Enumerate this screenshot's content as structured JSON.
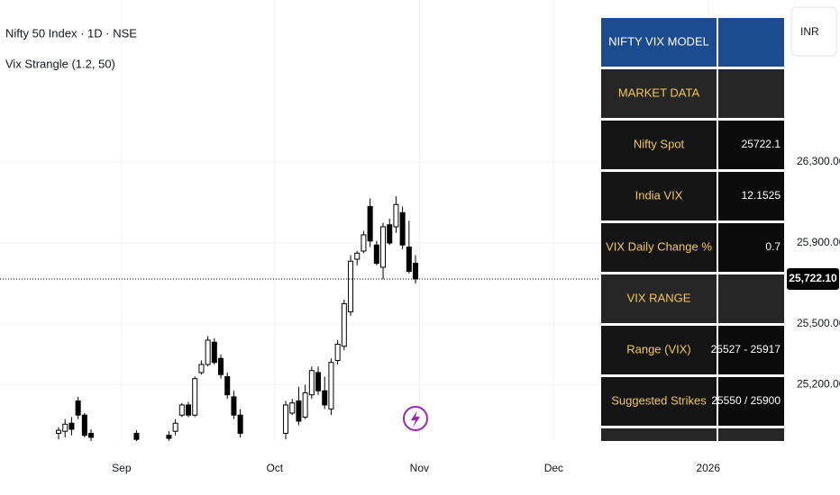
{
  "header": {
    "symbol": "Nifty 50 Index · 1D · NSE",
    "indicator": "Vix Strangle (1.2, 50)",
    "currency": "INR"
  },
  "chart_data": {
    "type": "candlestick",
    "x": [
      0,
      1,
      2,
      3,
      4,
      5,
      12,
      17,
      18,
      19,
      20,
      21,
      22,
      23,
      24,
      25,
      26,
      27,
      28,
      35,
      36,
      37,
      38,
      39,
      40,
      41,
      42,
      43,
      44,
      45,
      46,
      47,
      48,
      49,
      50,
      51,
      52,
      53,
      54,
      55
    ],
    "open": [
      24960,
      24970,
      25010,
      25120,
      25050,
      24960,
      24960,
      24950,
      24970,
      25050,
      25100,
      25050,
      25260,
      25300,
      25410,
      25330,
      25240,
      25140,
      25050,
      24960,
      25060,
      25120,
      25040,
      25150,
      25260,
      25170,
      25080,
      25320,
      25390,
      25560,
      25820,
      25860,
      26080,
      25890,
      25780,
      25990,
      25980,
      26050,
      25880,
      25800
    ],
    "high": [
      24990,
      25030,
      25040,
      25140,
      25060,
      24980,
      24975,
      24970,
      25030,
      25110,
      25115,
      25240,
      25320,
      25440,
      25430,
      25350,
      25260,
      25170,
      25080,
      25120,
      25130,
      25190,
      25200,
      25290,
      25290,
      25240,
      25330,
      25420,
      25620,
      25840,
      25860,
      25960,
      26120,
      25910,
      26000,
      26020,
      26130,
      26080,
      26010,
      25840
    ],
    "low": [
      24930,
      24940,
      24950,
      25030,
      24940,
      24920,
      24920,
      24920,
      24950,
      25040,
      25040,
      25040,
      25250,
      25290,
      25300,
      25230,
      25130,
      25030,
      24940,
      24930,
      25050,
      25000,
      25030,
      25130,
      25150,
      25080,
      25050,
      25300,
      25370,
      25540,
      25790,
      25850,
      25880,
      25790,
      25720,
      25890,
      25950,
      25870,
      25750,
      25700
    ],
    "close": [
      24975,
      25005,
      24980,
      25050,
      24950,
      24940,
      24930,
      24935,
      25010,
      25100,
      25050,
      25230,
      25300,
      25420,
      25310,
      25250,
      25150,
      25050,
      24960,
      25100,
      25110,
      25020,
      25160,
      25270,
      25170,
      25100,
      25310,
      25400,
      25600,
      25810,
      25850,
      25940,
      25910,
      25800,
      25980,
      25900,
      26090,
      25890,
      25760,
      25722.1
    ],
    "up_color": "#ffffff",
    "down_color": "#000000",
    "xlim": [
      -9.03,
      111.8
    ],
    "xticks": [
      {
        "value": 9.7,
        "label": "Sep"
      },
      {
        "value": 33.3,
        "label": "Oct"
      },
      {
        "value": 55.6,
        "label": "Nov"
      },
      {
        "value": 76.3,
        "label": "Dec"
      },
      {
        "value": 100.1,
        "label": "2026"
      }
    ],
    "ylim": [
      24922,
      27100
    ],
    "yticks": [
      {
        "value": 25200,
        "label": "25,200.00"
      },
      {
        "value": 25500,
        "label": "25,500.00"
      },
      {
        "value": 25900,
        "label": "25,900.00"
      },
      {
        "value": 26300,
        "label": "26,300.00"
      }
    ],
    "last_price": {
      "value": 25722.1,
      "label": "25,722.10"
    },
    "grid": true
  },
  "table": {
    "title": "NIFTY VIX MODEL",
    "rows": [
      [
        "MARKET DATA"
      ],
      [
        "Nifty Spot",
        "25722.1"
      ],
      [
        "India VIX",
        "12.1525"
      ],
      [
        "VIX Daily Change %",
        "0.7"
      ],
      [
        "VIX RANGE"
      ],
      [
        "Range (VIX)",
        "25527 - 25917"
      ],
      [
        "Suggested Strikes",
        "25550 / 25900"
      ]
    ]
  }
}
